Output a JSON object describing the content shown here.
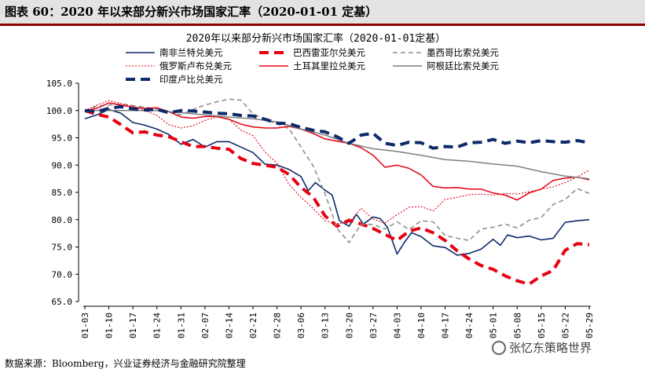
{
  "caption": "图表 60：2020 年以来部分新兴市场国家汇率（2020-01-01 定基）",
  "source": "数据来源：Bloomberg，兴业证券经济与金融研究院整理",
  "watermark": "张忆东策略世界",
  "chart_data": {
    "type": "line",
    "title": "2020年以来部分新兴市场国家汇率（2020-01-01定基）",
    "xlabel": "",
    "ylabel": "",
    "ylim": [
      65,
      105
    ],
    "yticks": [
      "65.0",
      "70.0",
      "75.0",
      "80.0",
      "85.0",
      "90.0",
      "95.0",
      "100.0",
      "105.0"
    ],
    "x_tick_labels": [
      "01-03",
      "01-10",
      "01-17",
      "01-24",
      "01-31",
      "02-07",
      "02-14",
      "02-21",
      "02-28",
      "03-06",
      "03-13",
      "03-20",
      "03-27",
      "04-03",
      "04-10",
      "04-17",
      "04-24",
      "05-01",
      "05-08",
      "05-15",
      "05-22",
      "05-29"
    ],
    "grid": false,
    "legend_position": "top",
    "series": [
      {
        "name": "南非兰特兑美元",
        "color": "#0d2a6b",
        "style": "solid",
        "width": 1.6,
        "points": [
          [
            0,
            98.5
          ],
          [
            0.5,
            99.2
          ],
          [
            1,
            100.2
          ],
          [
            1.5,
            99.5
          ],
          [
            2,
            97.8
          ],
          [
            2.5,
            97.3
          ],
          [
            3,
            96.6
          ],
          [
            3.5,
            95.6
          ],
          [
            4,
            93.8
          ],
          [
            4.5,
            94.7
          ],
          [
            5,
            93.3
          ],
          [
            5.5,
            94.3
          ],
          [
            6,
            94.3
          ],
          [
            6.5,
            93.3
          ],
          [
            7,
            92.3
          ],
          [
            7.5,
            90.2
          ],
          [
            8,
            90.0
          ],
          [
            8.5,
            89.2
          ],
          [
            9,
            87.9
          ],
          [
            9.3,
            85.3
          ],
          [
            9.6,
            86.8
          ],
          [
            10,
            85.4
          ],
          [
            10.3,
            84.5
          ],
          [
            10.6,
            79.8
          ],
          [
            11,
            78.8
          ],
          [
            11.3,
            81.0
          ],
          [
            11.6,
            79.2
          ],
          [
            12,
            80.5
          ],
          [
            12.3,
            80.2
          ],
          [
            12.6,
            78.6
          ],
          [
            13,
            73.7
          ],
          [
            13.3,
            75.8
          ],
          [
            13.6,
            77.6
          ],
          [
            14,
            76.9
          ],
          [
            14.5,
            75.2
          ],
          [
            15,
            74.9
          ],
          [
            15.5,
            73.5
          ],
          [
            16,
            73.8
          ],
          [
            16.5,
            74.6
          ],
          [
            17,
            76.4
          ],
          [
            17.3,
            75.3
          ],
          [
            17.6,
            77.2
          ],
          [
            18,
            76.7
          ],
          [
            18.5,
            77.0
          ],
          [
            19,
            76.3
          ],
          [
            19.5,
            76.6
          ],
          [
            20,
            79.5
          ],
          [
            20.5,
            79.8
          ],
          [
            21,
            80.0
          ]
        ]
      },
      {
        "name": "巴西雷亚尔兑美元",
        "color": "#e60012",
        "style": "dash-thick",
        "width": 4,
        "points": [
          [
            0,
            100
          ],
          [
            0.5,
            99.3
          ],
          [
            1,
            98.8
          ],
          [
            1.5,
            97.4
          ],
          [
            2,
            95.9
          ],
          [
            2.5,
            96.1
          ],
          [
            3,
            95.5
          ],
          [
            3.5,
            95.2
          ],
          [
            4,
            94.3
          ],
          [
            4.5,
            93.4
          ],
          [
            5,
            93.4
          ],
          [
            5.5,
            93.1
          ],
          [
            6,
            92.9
          ],
          [
            6.5,
            91.2
          ],
          [
            7,
            90.3
          ],
          [
            7.5,
            90.0
          ],
          [
            8,
            89.6
          ],
          [
            8.5,
            88.3
          ],
          [
            9,
            85.9
          ],
          [
            9.5,
            84.2
          ],
          [
            10,
            80.7
          ],
          [
            10.5,
            78.8
          ],
          [
            11,
            79.9
          ],
          [
            11.5,
            79.2
          ],
          [
            12,
            78.4
          ],
          [
            12.5,
            77.3
          ],
          [
            13,
            76.2
          ],
          [
            13.5,
            77.9
          ],
          [
            14,
            78.5
          ],
          [
            14.5,
            77.6
          ],
          [
            15,
            76.2
          ],
          [
            15.5,
            74.3
          ],
          [
            16,
            72.8
          ],
          [
            16.5,
            71.6
          ],
          [
            17,
            70.9
          ],
          [
            17.5,
            69.7
          ],
          [
            18,
            68.8
          ],
          [
            18.5,
            68.2
          ],
          [
            19,
            69.7
          ],
          [
            19.5,
            70.7
          ],
          [
            20,
            74.4
          ],
          [
            20.5,
            75.6
          ],
          [
            21,
            75.4
          ]
        ]
      },
      {
        "name": "墨西哥比索兑美元",
        "color": "#8f8f8f",
        "style": "dash",
        "width": 1.6,
        "points": [
          [
            0,
            100
          ],
          [
            0.5,
            100.8
          ],
          [
            1,
            101.0
          ],
          [
            1.5,
            101.2
          ],
          [
            2,
            100.9
          ],
          [
            2.5,
            100.6
          ],
          [
            3,
            100.3
          ],
          [
            3.5,
            99.7
          ],
          [
            4,
            99.2
          ],
          [
            4.5,
            100.2
          ],
          [
            5,
            101.0
          ],
          [
            5.5,
            101.6
          ],
          [
            6,
            102.1
          ],
          [
            6.5,
            101.9
          ],
          [
            7,
            99.4
          ],
          [
            7.5,
            98.4
          ],
          [
            8,
            97.5
          ],
          [
            8.5,
            96.7
          ],
          [
            9,
            93.3
          ],
          [
            9.5,
            89.9
          ],
          [
            10,
            84.8
          ],
          [
            10.5,
            78.4
          ],
          [
            11,
            75.8
          ],
          [
            11.5,
            79.2
          ],
          [
            12,
            79.1
          ],
          [
            12.5,
            78.3
          ],
          [
            13,
            79.6
          ],
          [
            13.5,
            78.2
          ],
          [
            14,
            79.8
          ],
          [
            14.5,
            79.6
          ],
          [
            15,
            77.1
          ],
          [
            15.5,
            76.6
          ],
          [
            16,
            76.2
          ],
          [
            16.5,
            78.3
          ],
          [
            17,
            78.6
          ],
          [
            17.5,
            79.2
          ],
          [
            18,
            78.5
          ],
          [
            18.5,
            79.9
          ],
          [
            19,
            80.4
          ],
          [
            19.5,
            82.8
          ],
          [
            20,
            83.7
          ],
          [
            20.5,
            85.7
          ],
          [
            21,
            84.8
          ]
        ]
      },
      {
        "name": "俄罗斯卢布兑美元",
        "color": "#e60012",
        "style": "dot",
        "width": 1.1,
        "points": [
          [
            0,
            100
          ],
          [
            0.5,
            101.0
          ],
          [
            1,
            101.8
          ],
          [
            1.5,
            101.3
          ],
          [
            2,
            100.8
          ],
          [
            2.5,
            100.0
          ],
          [
            3,
            99.1
          ],
          [
            3.5,
            97.4
          ],
          [
            4,
            96.8
          ],
          [
            4.5,
            97.2
          ],
          [
            5,
            98.2
          ],
          [
            5.5,
            98.8
          ],
          [
            6,
            98.4
          ],
          [
            6.5,
            96.4
          ],
          [
            7,
            95.4
          ],
          [
            7.5,
            92.4
          ],
          [
            8,
            90.3
          ],
          [
            8.5,
            86.5
          ],
          [
            9,
            84.1
          ],
          [
            9.5,
            82.1
          ],
          [
            10,
            79.8
          ],
          [
            10.5,
            79.3
          ],
          [
            11,
            79.4
          ],
          [
            11.5,
            82.1
          ],
          [
            12,
            80.1
          ],
          [
            12.5,
            79.4
          ],
          [
            13,
            80.9
          ],
          [
            13.5,
            82.3
          ],
          [
            14,
            82.4
          ],
          [
            14.5,
            81.6
          ],
          [
            15,
            83.7
          ],
          [
            15.5,
            84.1
          ],
          [
            16,
            84.6
          ],
          [
            16.5,
            84.7
          ],
          [
            17,
            84.5
          ],
          [
            17.5,
            84.8
          ],
          [
            18,
            84.7
          ],
          [
            18.5,
            85.1
          ],
          [
            19,
            85.6
          ],
          [
            19.5,
            86.0
          ],
          [
            20,
            86.8
          ],
          [
            20.5,
            87.8
          ],
          [
            21,
            89.1
          ]
        ]
      },
      {
        "name": "土耳其里拉兑美元",
        "color": "#e60012",
        "style": "solid",
        "width": 1.5,
        "points": [
          [
            0,
            100
          ],
          [
            0.5,
            100.4
          ],
          [
            1,
            101.4
          ],
          [
            1.5,
            101.0
          ],
          [
            2,
            100.6
          ],
          [
            2.5,
            100.4
          ],
          [
            3,
            100.5
          ],
          [
            3.5,
            99.8
          ],
          [
            4,
            98.8
          ],
          [
            4.5,
            98.6
          ],
          [
            5,
            98.9
          ],
          [
            5.5,
            98.9
          ],
          [
            6,
            98.4
          ],
          [
            6.5,
            97.5
          ],
          [
            7,
            97.0
          ],
          [
            7.5,
            96.8
          ],
          [
            8,
            96.8
          ],
          [
            8.5,
            97.1
          ],
          [
            9,
            96.6
          ],
          [
            9.5,
            95.8
          ],
          [
            10,
            94.8
          ],
          [
            10.5,
            94.4
          ],
          [
            11,
            94.0
          ],
          [
            11.5,
            93.2
          ],
          [
            12,
            91.8
          ],
          [
            12.5,
            89.6
          ],
          [
            13,
            90.0
          ],
          [
            13.5,
            89.4
          ],
          [
            14,
            88.2
          ],
          [
            14.5,
            86.1
          ],
          [
            15,
            85.8
          ],
          [
            15.5,
            85.9
          ],
          [
            16,
            85.6
          ],
          [
            16.5,
            85.6
          ],
          [
            17,
            84.9
          ],
          [
            17.5,
            84.5
          ],
          [
            18,
            83.6
          ],
          [
            18.5,
            84.9
          ],
          [
            19,
            85.6
          ],
          [
            19.5,
            87.2
          ],
          [
            20,
            87.6
          ],
          [
            20.5,
            87.8
          ],
          [
            21,
            87.3
          ]
        ]
      },
      {
        "name": "阿根廷比索兑美元",
        "color": "#7f7f7f",
        "style": "solid",
        "width": 1.5,
        "points": [
          [
            0,
            100
          ],
          [
            1,
            100
          ],
          [
            2,
            100
          ],
          [
            3,
            100
          ],
          [
            4,
            99.6
          ],
          [
            5,
            99.2
          ],
          [
            6,
            98.8
          ],
          [
            7,
            98.5
          ],
          [
            8,
            97.9
          ],
          [
            9,
            96.6
          ],
          [
            10,
            95.5
          ],
          [
            11,
            94.0
          ],
          [
            12,
            93.0
          ],
          [
            13,
            92.5
          ],
          [
            14,
            91.8
          ],
          [
            15,
            91.0
          ],
          [
            16,
            90.7
          ],
          [
            17,
            90.2
          ],
          [
            18,
            89.8
          ],
          [
            19,
            88.8
          ],
          [
            20,
            88.0
          ],
          [
            21,
            87.5
          ]
        ]
      },
      {
        "name": "印度卢比兑美元",
        "color": "#0d2a6b",
        "style": "dash-thick",
        "width": 4,
        "points": [
          [
            0,
            100
          ],
          [
            0.5,
            99.8
          ],
          [
            1,
            100.4
          ],
          [
            1.5,
            100.7
          ],
          [
            2,
            100.3
          ],
          [
            2.5,
            100.1
          ],
          [
            3,
            100.2
          ],
          [
            3.5,
            99.6
          ],
          [
            4,
            100.0
          ],
          [
            4.5,
            99.9
          ],
          [
            5,
            99.7
          ],
          [
            5.5,
            99.5
          ],
          [
            6,
            99.4
          ],
          [
            6.5,
            99.1
          ],
          [
            7,
            99.0
          ],
          [
            7.5,
            98.4
          ],
          [
            8,
            97.7
          ],
          [
            8.5,
            97.6
          ],
          [
            9,
            96.9
          ],
          [
            9.5,
            96.4
          ],
          [
            10,
            96.1
          ],
          [
            10.5,
            95.2
          ],
          [
            11,
            94.0
          ],
          [
            11.5,
            95.5
          ],
          [
            12,
            95.8
          ],
          [
            12.5,
            94.0
          ],
          [
            13,
            93.6
          ],
          [
            13.5,
            94.2
          ],
          [
            14,
            94.1
          ],
          [
            14.5,
            93.1
          ],
          [
            15,
            93.4
          ],
          [
            15.5,
            93.3
          ],
          [
            16,
            94.1
          ],
          [
            16.5,
            94.2
          ],
          [
            17,
            94.7
          ],
          [
            17.5,
            94.0
          ],
          [
            18,
            94.4
          ],
          [
            18.5,
            94.1
          ],
          [
            19,
            94.5
          ],
          [
            19.5,
            94.3
          ],
          [
            20,
            94.2
          ],
          [
            20.5,
            94.5
          ],
          [
            21,
            94.1
          ]
        ]
      }
    ]
  }
}
